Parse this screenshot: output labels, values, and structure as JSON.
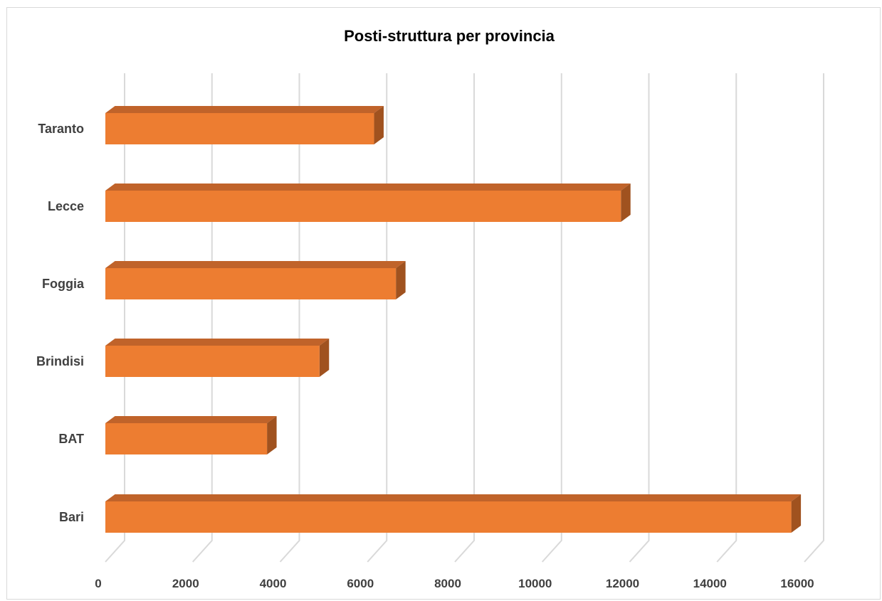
{
  "chart_data": {
    "type": "bar",
    "orientation": "horizontal",
    "style": "3d",
    "title": "Posti-struttura per provincia",
    "xlabel": "",
    "ylabel": "",
    "categories": [
      "Bari",
      "BAT",
      "Brindisi",
      "Foggia",
      "Lecce",
      "Taranto"
    ],
    "values": [
      15700,
      3700,
      4900,
      6650,
      11800,
      6150
    ],
    "xlim": [
      0,
      16000
    ],
    "xticks": [
      "0",
      "2000",
      "4000",
      "6000",
      "8000",
      "10000",
      "12000",
      "14000",
      "16000"
    ],
    "grid": true,
    "legend": false,
    "colors": {
      "bar_front": "#ED7D31",
      "bar_top": "#C0632A",
      "bar_side": "#A0521F",
      "grid": "#d9d9d9"
    }
  }
}
